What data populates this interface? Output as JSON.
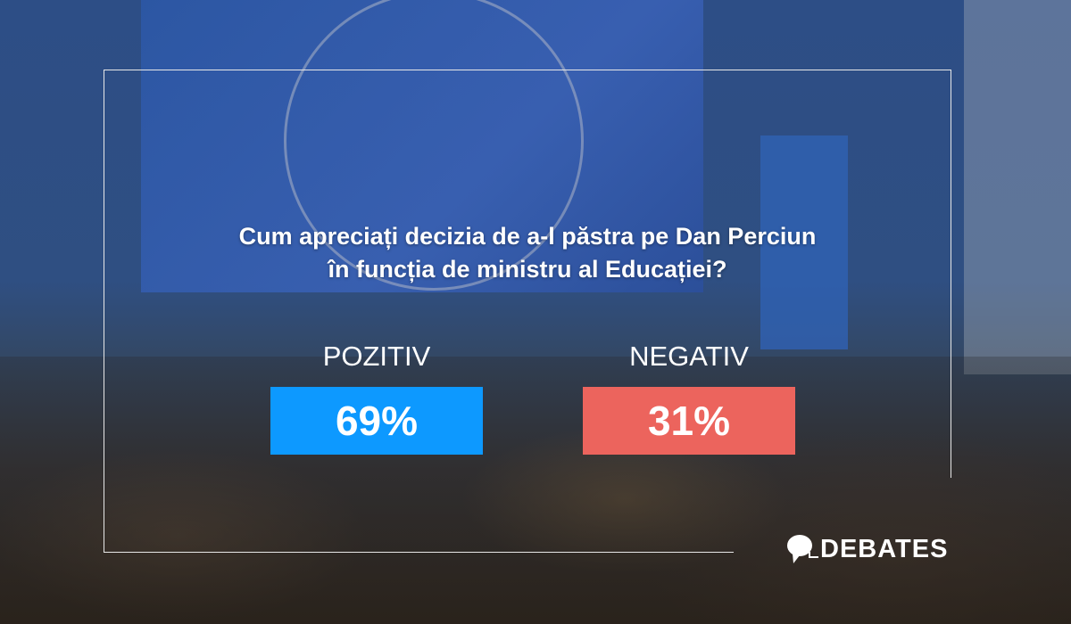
{
  "poll": {
    "question_line1": "Cum apreciați decizia de a-l păstra pe Dan Perciun",
    "question_line2": "în funcția de ministru al Educației?",
    "options": [
      {
        "label": "POZITIV",
        "value": "69%",
        "percent": 69,
        "color": "#0d99ff"
      },
      {
        "label": "NEGATIV",
        "value": "31%",
        "percent": 31,
        "color": "#ec645d"
      }
    ]
  },
  "brand": {
    "name": "DEBATES",
    "icon": "speech-bubble-icon"
  }
}
